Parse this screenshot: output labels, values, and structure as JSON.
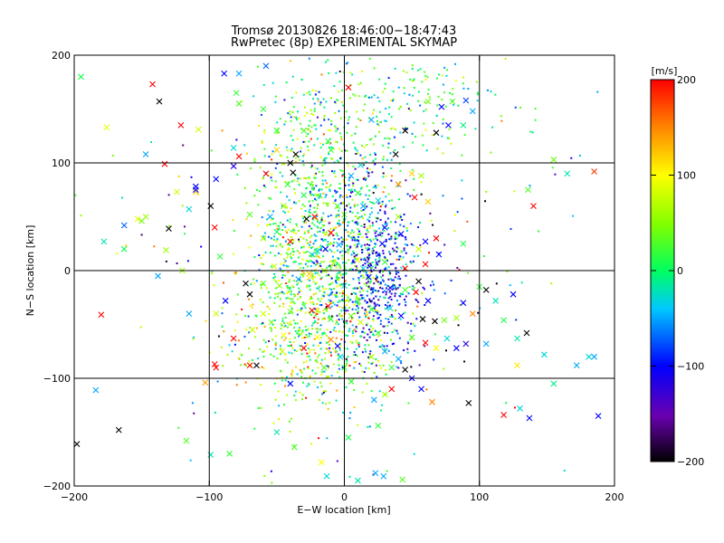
{
  "chart_data": {
    "type": "scatter",
    "title": "Tromsø 20130826 18:46:00−18:47:43",
    "subtitle": "RwPretec (8p) EXPERIMENTAL SKYMAP",
    "xlabel": "E−W location [km]",
    "ylabel": "N−S location [km]",
    "xlim": [
      -200,
      200
    ],
    "ylim": [
      -200,
      200
    ],
    "xticks": [
      -200,
      -100,
      0,
      100,
      200
    ],
    "yticks": [
      -200,
      -100,
      0,
      100,
      200
    ],
    "xtick_labels": [
      "−200",
      "−100",
      "0",
      "100",
      "200"
    ],
    "ytick_labels": [
      "−200",
      "−100",
      "0",
      "100",
      "200"
    ],
    "grid": true,
    "marker_types": [
      "small dots",
      "x crosses"
    ],
    "colorbar": {
      "label": "[m/s]",
      "range": [
        -200,
        200
      ],
      "ticks": [
        -200,
        -100,
        0,
        100,
        200
      ],
      "tick_labels": [
        "−200",
        "−100",
        "0",
        "100",
        "200"
      ],
      "colormap": "rainbow (black → purple → blue → cyan → green → yellow → red)"
    },
    "series": [
      {
        "marker": "x",
        "points": [
          [
            -195,
            180,
            10
          ],
          [
            -142,
            173,
            200
          ],
          [
            -137,
            157,
            -200
          ],
          [
            -121,
            135,
            200
          ],
          [
            -176,
            133,
            90
          ],
          [
            -89,
            183,
            -100
          ],
          [
            -78,
            183,
            -50
          ],
          [
            -58,
            190,
            -70
          ],
          [
            -147,
            108,
            -50
          ],
          [
            -133,
            99,
            200
          ],
          [
            -110,
            73,
            120
          ],
          [
            -124,
            73,
            80
          ],
          [
            -110,
            78,
            -100
          ],
          [
            -110,
            75,
            -100
          ],
          [
            -130,
            39,
            -200
          ],
          [
            -115,
            57,
            -30
          ],
          [
            -99,
            60,
            -200
          ],
          [
            -95,
            85,
            -100
          ],
          [
            -163,
            42,
            -70
          ],
          [
            -147,
            50,
            60
          ],
          [
            -150,
            46,
            40
          ],
          [
            -153,
            48,
            90
          ],
          [
            -178,
            27,
            -20
          ],
          [
            -163,
            20,
            10
          ],
          [
            -132,
            19,
            60
          ],
          [
            -138,
            -5,
            -50
          ],
          [
            -96,
            40,
            200
          ],
          [
            -82,
            114,
            -30
          ],
          [
            -78,
            106,
            200
          ],
          [
            -82,
            97,
            -120
          ],
          [
            -58,
            90,
            200
          ],
          [
            -40,
            100,
            -200
          ],
          [
            -38,
            91,
            -200
          ],
          [
            -36,
            108,
            -200
          ],
          [
            -60,
            30,
            60
          ],
          [
            -40,
            27,
            200
          ],
          [
            -20,
            18,
            -30
          ],
          [
            -22,
            50,
            200
          ],
          [
            -28,
            48,
            -200
          ],
          [
            -10,
            35,
            200
          ],
          [
            -70,
            -22,
            -200
          ],
          [
            -88,
            -28,
            -100
          ],
          [
            -73,
            -12,
            -200
          ],
          [
            -82,
            -63,
            200
          ],
          [
            -96,
            -87,
            200
          ],
          [
            -95,
            -90,
            200
          ],
          [
            -65,
            -88,
            -200
          ],
          [
            -70,
            -88,
            200
          ],
          [
            -103,
            -104,
            140
          ],
          [
            -180,
            -41,
            200
          ],
          [
            -108,
            131,
            80
          ],
          [
            -50,
            36,
            0
          ],
          [
            -70,
            52,
            30
          ],
          [
            -92,
            13,
            20
          ],
          [
            -55,
            50,
            -50
          ],
          [
            -30,
            130,
            30
          ],
          [
            -10,
            112,
            20
          ],
          [
            0,
            52,
            30
          ],
          [
            -12,
            120,
            20
          ],
          [
            3,
            170,
            200
          ],
          [
            20,
            140,
            -50
          ],
          [
            40,
            80,
            150
          ],
          [
            52,
            68,
            200
          ],
          [
            62,
            64,
            120
          ],
          [
            45,
            130,
            -200
          ],
          [
            68,
            128,
            -200
          ],
          [
            72,
            152,
            -100
          ],
          [
            95,
            148,
            -50
          ],
          [
            62,
            157,
            40
          ],
          [
            90,
            158,
            -80
          ],
          [
            88,
            135,
            -10
          ],
          [
            77,
            135,
            -100
          ],
          [
            80,
            157,
            30
          ],
          [
            50,
            90,
            120
          ],
          [
            57,
            88,
            60
          ],
          [
            38,
            108,
            -200
          ],
          [
            40,
            50,
            60
          ],
          [
            30,
            40,
            -100
          ],
          [
            42,
            34,
            -100
          ],
          [
            60,
            27,
            -100
          ],
          [
            55,
            20,
            80
          ],
          [
            68,
            30,
            200
          ],
          [
            88,
            25,
            10
          ],
          [
            70,
            15,
            -100
          ],
          [
            45,
            2,
            200
          ],
          [
            60,
            6,
            200
          ],
          [
            55,
            -10,
            -200
          ],
          [
            62,
            -28,
            -100
          ],
          [
            53,
            -20,
            200
          ],
          [
            58,
            -45,
            -200
          ],
          [
            67,
            -47,
            -200
          ],
          [
            88,
            -30,
            -100
          ],
          [
            95,
            -40,
            150
          ],
          [
            100,
            -15,
            20
          ],
          [
            105,
            -18,
            -200
          ],
          [
            112,
            -28,
            -20
          ],
          [
            125,
            -22,
            -100
          ],
          [
            118,
            -46,
            10
          ],
          [
            135,
            -58,
            -200
          ],
          [
            128,
            -63,
            -20
          ],
          [
            105,
            -68,
            -50
          ],
          [
            90,
            -68,
            -120
          ],
          [
            83,
            -72,
            -100
          ],
          [
            68,
            -72,
            100
          ],
          [
            50,
            -62,
            20
          ],
          [
            40,
            -82,
            -50
          ],
          [
            35,
            -90,
            20
          ],
          [
            45,
            -92,
            -200
          ],
          [
            50,
            -100,
            -100
          ],
          [
            57,
            -110,
            -100
          ],
          [
            65,
            -122,
            150
          ],
          [
            35,
            -110,
            200
          ],
          [
            30,
            -115,
            60
          ],
          [
            22,
            -120,
            -50
          ],
          [
            5,
            -103,
            20
          ],
          [
            0,
            -90,
            10
          ],
          [
            -15,
            -90,
            30
          ],
          [
            -30,
            -72,
            200
          ],
          [
            -40,
            -105,
            -100
          ],
          [
            -46,
            -75,
            80
          ],
          [
            -20,
            -62,
            100
          ],
          [
            -10,
            -64,
            150
          ],
          [
            -5,
            -70,
            -100
          ],
          [
            -3,
            -80,
            -30
          ],
          [
            -54,
            -48,
            40
          ],
          [
            -40,
            -38,
            40
          ],
          [
            -24,
            -37,
            200
          ],
          [
            -12,
            -33,
            200
          ],
          [
            5,
            -42,
            40
          ],
          [
            10,
            -28,
            30
          ],
          [
            12,
            -48,
            80
          ],
          [
            20,
            -36,
            20
          ],
          [
            25,
            -58,
            20
          ],
          [
            30,
            -75,
            -50
          ],
          [
            20,
            -80,
            60
          ],
          [
            -10,
            -45,
            20
          ],
          [
            -26,
            -3,
            120
          ],
          [
            -48,
            -14,
            50
          ],
          [
            -34,
            -8,
            -50
          ],
          [
            -52,
            4,
            80
          ],
          [
            -8,
            7,
            60
          ],
          [
            0,
            -14,
            -30
          ],
          [
            18,
            -6,
            -100
          ],
          [
            30,
            8,
            20
          ],
          [
            92,
            -123,
            -200
          ],
          [
            118,
            -134,
            200
          ],
          [
            130,
            -128,
            -30
          ],
          [
            137,
            -137,
            -100
          ],
          [
            155,
            -105,
            -10
          ],
          [
            188,
            -135,
            -100
          ],
          [
            172,
            -88,
            -50
          ],
          [
            181,
            -80,
            -30
          ],
          [
            185,
            -80,
            -50
          ],
          [
            148,
            -78,
            -30
          ],
          [
            128,
            -88,
            110
          ],
          [
            155,
            103,
            40
          ],
          [
            165,
            90,
            -20
          ],
          [
            185,
            92,
            180
          ],
          [
            140,
            60,
            200
          ],
          [
            136,
            75,
            30
          ],
          [
            60,
            -67,
            200
          ],
          [
            76,
            -63,
            -30
          ],
          [
            83,
            -44,
            60
          ],
          [
            74,
            -46,
            40
          ],
          [
            -184,
            -111,
            -50
          ],
          [
            -167,
            -148,
            -200
          ],
          [
            -198,
            -161,
            -200
          ],
          [
            -99,
            -171,
            -20
          ],
          [
            -85,
            -170,
            20
          ],
          [
            -37,
            -164,
            30
          ],
          [
            -17,
            -178,
            100
          ],
          [
            3,
            -155,
            10
          ],
          [
            10,
            -195,
            -20
          ],
          [
            23,
            -188,
            -50
          ],
          [
            29,
            -191,
            -50
          ],
          [
            43,
            -194,
            30
          ],
          [
            -13,
            -191,
            -30
          ],
          [
            -50,
            -150,
            -20
          ],
          [
            -117,
            -158,
            30
          ],
          [
            25,
            -144,
            20
          ],
          [
            -78,
            155,
            30
          ],
          [
            -60,
            150,
            20
          ],
          [
            -50,
            130,
            10
          ],
          [
            -50,
            112,
            120
          ],
          [
            -80,
            165,
            20
          ],
          [
            -120,
            0,
            60
          ],
          [
            -115,
            -40,
            -50
          ],
          [
            -95,
            -40,
            80
          ],
          [
            -60,
            -40,
            80
          ],
          [
            -45,
            -60,
            100
          ],
          [
            -68,
            -55,
            80
          ],
          [
            -60,
            -12,
            30
          ],
          [
            25,
            65,
            -30
          ],
          [
            28,
            25,
            -100
          ],
          [
            10,
            10,
            100
          ],
          [
            14,
            2,
            -30
          ],
          [
            -4,
            24,
            -50
          ],
          [
            -14,
            20,
            -100
          ],
          [
            -24,
            15,
            -30
          ],
          [
            -15,
            0,
            60
          ],
          [
            34,
            -16,
            -100
          ],
          [
            45,
            -18,
            30
          ],
          [
            34,
            -35,
            -30
          ],
          [
            42,
            -42,
            -100
          ],
          [
            14,
            60,
            -50
          ],
          [
            10,
            72,
            20
          ],
          [
            5,
            88,
            -50
          ],
          [
            12,
            98,
            -30
          ],
          [
            -5,
            60,
            20
          ],
          [
            -30,
            70,
            10
          ],
          [
            -45,
            60,
            50
          ],
          [
            -42,
            80,
            20
          ]
        ]
      },
      {
        "marker": "dot",
        "clusters": [
          {
            "center": [
              -22,
              25
            ],
            "spread": [
              22,
              70
            ],
            "count": 900,
            "value_mean": 30,
            "value_spread": 60
          },
          {
            "center": [
              15,
              10
            ],
            "spread": [
              18,
              55
            ],
            "count": 500,
            "value_mean": -40,
            "value_spread": 60
          },
          {
            "center": [
              28,
              -10
            ],
            "spread": [
              14,
              35
            ],
            "count": 260,
            "value_mean": -110,
            "value_spread": 40
          },
          {
            "center": [
              30,
              150
            ],
            "spread": [
              45,
              30
            ],
            "count": 260,
            "value_mean": 10,
            "value_spread": 50
          },
          {
            "center": [
              -30,
              -60
            ],
            "spread": [
              28,
              35
            ],
            "count": 320,
            "value_mean": 60,
            "value_spread": 50
          },
          {
            "center": [
              0,
              0
            ],
            "spread": [
              85,
              95
            ],
            "count": 220,
            "value_mean": 0,
            "value_spread": 110
          }
        ]
      }
    ]
  }
}
